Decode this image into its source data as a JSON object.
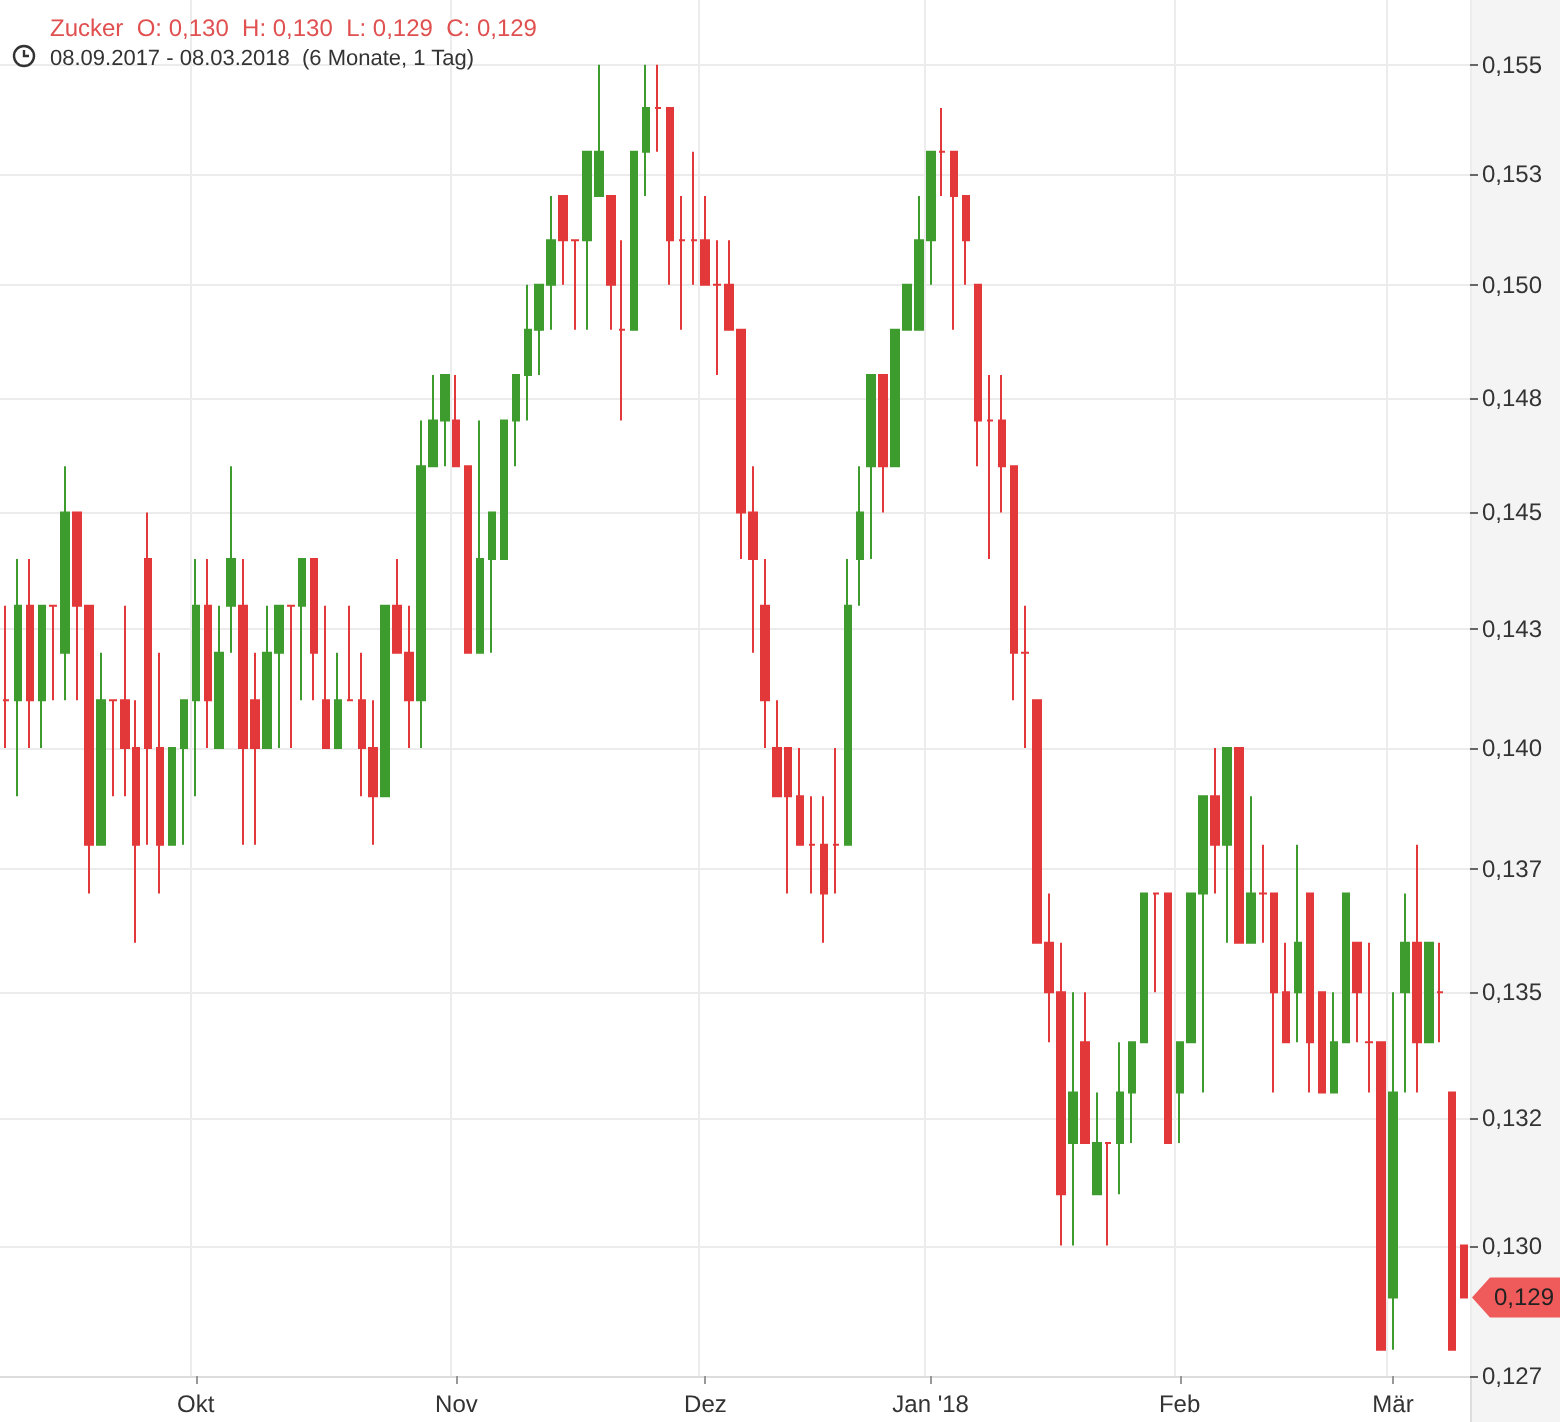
{
  "chart_data": {
    "type": "candlestick",
    "title": "Zucker  O: 0,130  H: 0,130  L: 0,129  C: 0,129",
    "subtitle": "08.09.2017 - 08.03.2018  (6 Monate, 1 Tag)",
    "categories": [
      null,
      null,
      null,
      null,
      null,
      null,
      null,
      null,
      null,
      null,
      null,
      null,
      null,
      null,
      null,
      null,
      "Okt",
      null,
      null,
      null,
      null,
      null,
      null,
      null,
      null,
      null,
      null,
      null,
      null,
      null,
      null,
      null,
      null,
      null,
      null,
      null,
      null,
      null,
      "Nov",
      null,
      null,
      null,
      null,
      null,
      null,
      null,
      null,
      null,
      null,
      null,
      null,
      null,
      null,
      null,
      null,
      null,
      null,
      null,
      null,
      "Dez",
      null,
      null,
      null,
      null,
      null,
      null,
      null,
      null,
      null,
      null,
      null,
      null,
      null,
      null,
      null,
      null,
      null,
      null,
      "Jan '18",
      null,
      null,
      null,
      null,
      null,
      null,
      null,
      null,
      null,
      null,
      null,
      null,
      null,
      null,
      null,
      null,
      null,
      null,
      null,
      null,
      "Feb",
      null,
      null,
      null,
      null,
      null,
      null,
      null,
      null,
      null,
      null,
      null,
      null,
      null,
      null,
      null,
      null,
      null,
      "Mär",
      null,
      null,
      null,
      null,
      null,
      null
    ],
    "ohlc": [
      [
        0.141,
        0.143,
        0.14,
        0.141
      ],
      [
        0.141,
        0.144,
        0.139,
        0.143
      ],
      [
        0.143,
        0.144,
        0.14,
        0.141
      ],
      [
        0.141,
        0.143,
        0.14,
        0.143
      ],
      [
        0.143,
        0.143,
        0.141,
        0.143
      ],
      [
        0.142,
        0.146,
        0.141,
        0.145
      ],
      [
        0.145,
        0.145,
        0.141,
        0.143
      ],
      [
        0.143,
        0.143,
        0.137,
        0.138
      ],
      [
        0.138,
        0.142,
        0.138,
        0.141
      ],
      [
        0.141,
        0.141,
        0.139,
        0.141
      ],
      [
        0.141,
        0.143,
        0.139,
        0.14
      ],
      [
        0.14,
        0.141,
        0.136,
        0.138
      ],
      [
        0.144,
        0.145,
        0.138,
        0.14
      ],
      [
        0.14,
        0.142,
        0.137,
        0.138
      ],
      [
        0.138,
        0.14,
        0.138,
        0.14
      ],
      [
        0.14,
        0.141,
        0.138,
        0.141
      ],
      [
        0.141,
        0.144,
        0.139,
        0.143
      ],
      [
        0.143,
        0.144,
        0.14,
        0.141
      ],
      [
        0.14,
        0.143,
        0.14,
        0.142
      ],
      [
        0.143,
        0.146,
        0.142,
        0.144
      ],
      [
        0.143,
        0.144,
        0.138,
        0.14
      ],
      [
        0.141,
        0.142,
        0.138,
        0.14
      ],
      [
        0.14,
        0.143,
        0.14,
        0.142
      ],
      [
        0.142,
        0.143,
        0.14,
        0.143
      ],
      [
        0.143,
        0.143,
        0.14,
        0.143
      ],
      [
        0.143,
        0.144,
        0.141,
        0.144
      ],
      [
        0.144,
        0.144,
        0.141,
        0.142
      ],
      [
        0.141,
        0.143,
        0.14,
        0.14
      ],
      [
        0.14,
        0.142,
        0.14,
        0.141
      ],
      [
        0.141,
        0.143,
        0.141,
        0.141
      ],
      [
        0.141,
        0.142,
        0.139,
        0.14
      ],
      [
        0.14,
        0.141,
        0.138,
        0.139
      ],
      [
        0.139,
        0.143,
        0.139,
        0.143
      ],
      [
        0.143,
        0.144,
        0.142,
        0.142
      ],
      [
        0.142,
        0.143,
        0.14,
        0.141
      ],
      [
        0.141,
        0.147,
        0.14,
        0.146
      ],
      [
        0.146,
        0.148,
        0.146,
        0.147
      ],
      [
        0.147,
        0.148,
        0.146,
        0.148
      ],
      [
        0.147,
        0.148,
        0.146,
        0.146
      ],
      [
        0.146,
        0.146,
        0.142,
        0.142
      ],
      [
        0.142,
        0.147,
        0.142,
        0.144
      ],
      [
        0.144,
        0.145,
        0.142,
        0.145
      ],
      [
        0.144,
        0.147,
        0.144,
        0.147
      ],
      [
        0.147,
        0.148,
        0.146,
        0.148
      ],
      [
        0.148,
        0.15,
        0.147,
        0.149
      ],
      [
        0.149,
        0.15,
        0.148,
        0.15
      ],
      [
        0.15,
        0.152,
        0.149,
        0.151
      ],
      [
        0.152,
        0.152,
        0.15,
        0.151
      ],
      [
        0.151,
        0.151,
        0.149,
        0.151
      ],
      [
        0.151,
        0.153,
        0.149,
        0.153
      ],
      [
        0.152,
        0.155,
        0.152,
        0.153
      ],
      [
        0.152,
        0.152,
        0.149,
        0.15
      ],
      [
        0.149,
        0.151,
        0.147,
        0.149
      ],
      [
        0.149,
        0.153,
        0.149,
        0.153
      ],
      [
        0.153,
        0.155,
        0.152,
        0.154
      ],
      [
        0.154,
        0.155,
        0.153,
        0.154
      ],
      [
        0.154,
        0.154,
        0.15,
        0.151
      ],
      [
        0.151,
        0.152,
        0.149,
        0.151
      ],
      [
        0.151,
        0.153,
        0.15,
        0.151
      ],
      [
        0.151,
        0.152,
        0.15,
        0.15
      ],
      [
        0.15,
        0.151,
        0.148,
        0.15
      ],
      [
        0.15,
        0.151,
        0.149,
        0.149
      ],
      [
        0.149,
        0.149,
        0.144,
        0.145
      ],
      [
        0.145,
        0.146,
        0.142,
        0.144
      ],
      [
        0.143,
        0.144,
        0.14,
        0.141
      ],
      [
        0.14,
        0.141,
        0.139,
        0.139
      ],
      [
        0.14,
        0.14,
        0.137,
        0.139
      ],
      [
        0.139,
        0.14,
        0.138,
        0.138
      ],
      [
        0.138,
        0.139,
        0.137,
        0.138
      ],
      [
        0.138,
        0.139,
        0.136,
        0.137
      ],
      [
        0.138,
        0.14,
        0.137,
        0.138
      ],
      [
        0.138,
        0.144,
        0.138,
        0.143
      ],
      [
        0.144,
        0.146,
        0.143,
        0.145
      ],
      [
        0.146,
        0.148,
        0.144,
        0.148
      ],
      [
        0.148,
        0.148,
        0.145,
        0.146
      ],
      [
        0.146,
        0.149,
        0.146,
        0.149
      ],
      [
        0.149,
        0.15,
        0.149,
        0.15
      ],
      [
        0.149,
        0.152,
        0.149,
        0.151
      ],
      [
        0.151,
        0.153,
        0.15,
        0.153
      ],
      [
        0.153,
        0.154,
        0.152,
        0.153
      ],
      [
        0.153,
        0.153,
        0.149,
        0.152
      ],
      [
        0.152,
        0.152,
        0.15,
        0.151
      ],
      [
        0.15,
        0.15,
        0.146,
        0.147
      ],
      [
        0.147,
        0.148,
        0.144,
        0.147
      ],
      [
        0.147,
        0.148,
        0.145,
        0.146
      ],
      [
        0.146,
        0.146,
        0.141,
        0.142
      ],
      [
        0.142,
        0.143,
        0.14,
        0.142
      ],
      [
        0.141,
        0.141,
        0.136,
        0.136
      ],
      [
        0.136,
        0.137,
        0.134,
        0.135
      ],
      [
        0.135,
        0.136,
        0.13,
        0.131
      ],
      [
        0.132,
        0.135,
        0.13,
        0.133
      ],
      [
        0.134,
        0.135,
        0.132,
        0.132
      ],
      [
        0.131,
        0.133,
        0.131,
        0.132
      ],
      [
        0.132,
        0.132,
        0.13,
        0.132
      ],
      [
        0.132,
        0.134,
        0.131,
        0.133
      ],
      [
        0.133,
        0.134,
        0.132,
        0.134
      ],
      [
        0.134,
        0.137,
        0.134,
        0.137
      ],
      [
        0.137,
        0.137,
        0.135,
        0.137
      ],
      [
        0.137,
        0.137,
        0.132,
        0.132
      ],
      [
        0.133,
        0.134,
        0.132,
        0.134
      ],
      [
        0.134,
        0.137,
        0.134,
        0.137
      ],
      [
        0.137,
        0.139,
        0.133,
        0.139
      ],
      [
        0.139,
        0.14,
        0.137,
        0.138
      ],
      [
        0.138,
        0.14,
        0.136,
        0.14
      ],
      [
        0.14,
        0.14,
        0.136,
        0.136
      ],
      [
        0.136,
        0.139,
        0.136,
        0.137
      ],
      [
        0.137,
        0.138,
        0.136,
        0.137
      ],
      [
        0.137,
        0.137,
        0.133,
        0.135
      ],
      [
        0.135,
        0.136,
        0.134,
        0.134
      ],
      [
        0.135,
        0.138,
        0.134,
        0.136
      ],
      [
        0.137,
        0.137,
        0.133,
        0.134
      ],
      [
        0.135,
        0.135,
        0.133,
        0.133
      ],
      [
        0.133,
        0.135,
        0.133,
        0.134
      ],
      [
        0.134,
        0.137,
        0.134,
        0.137
      ],
      [
        0.136,
        0.136,
        0.134,
        0.135
      ],
      [
        0.134,
        0.136,
        0.133,
        0.134
      ],
      [
        0.134,
        0.134,
        0.128,
        0.128
      ],
      [
        0.129,
        0.135,
        0.128,
        0.133
      ],
      [
        0.135,
        0.137,
        0.133,
        0.136
      ],
      [
        0.136,
        0.138,
        0.133,
        0.134
      ],
      [
        0.134,
        0.136,
        0.134,
        0.136
      ],
      [
        0.135,
        0.136,
        0.134,
        0.135
      ],
      [
        0.133,
        0.133,
        0.128,
        0.128
      ],
      [
        0.13,
        0.13,
        0.129,
        0.129
      ]
    ],
    "colors": [
      "#e2383a",
      "#3e9c2e",
      "#e2383a",
      "#3e9c2e",
      "#e2383a",
      "#3e9c2e",
      "#e2383a",
      "#e2383a",
      "#3e9c2e",
      "#e2383a",
      "#e2383a",
      "#e2383a",
      "#e2383a",
      "#e2383a",
      "#3e9c2e",
      "#3e9c2e",
      "#3e9c2e",
      "#e2383a",
      "#3e9c2e",
      "#3e9c2e",
      "#e2383a",
      "#e2383a",
      "#3e9c2e",
      "#3e9c2e",
      "#e2383a",
      "#3e9c2e",
      "#e2383a",
      "#e2383a",
      "#3e9c2e",
      "#e2383a",
      "#e2383a",
      "#e2383a",
      "#3e9c2e",
      "#e2383a",
      "#e2383a",
      "#3e9c2e",
      "#3e9c2e",
      "#3e9c2e",
      "#e2383a",
      "#e2383a",
      "#3e9c2e",
      "#3e9c2e",
      "#3e9c2e",
      "#3e9c2e",
      "#3e9c2e",
      "#3e9c2e",
      "#3e9c2e",
      "#e2383a",
      "#e2383a",
      "#3e9c2e",
      "#3e9c2e",
      "#e2383a",
      "#e2383a",
      "#3e9c2e",
      "#3e9c2e",
      "#e2383a",
      "#e2383a",
      "#e2383a",
      "#e2383a",
      "#e2383a",
      "#e2383a",
      "#e2383a",
      "#e2383a",
      "#e2383a",
      "#e2383a",
      "#e2383a",
      "#e2383a",
      "#e2383a",
      "#e2383a",
      "#e2383a",
      "#e2383a",
      "#3e9c2e",
      "#3e9c2e",
      "#3e9c2e",
      "#e2383a",
      "#3e9c2e",
      "#3e9c2e",
      "#3e9c2e",
      "#3e9c2e",
      "#e2383a",
      "#e2383a",
      "#e2383a",
      "#e2383a",
      "#e2383a",
      "#e2383a",
      "#e2383a",
      "#e2383a",
      "#e2383a",
      "#e2383a",
      "#e2383a",
      "#3e9c2e",
      "#e2383a",
      "#3e9c2e",
      "#e2383a",
      "#3e9c2e",
      "#3e9c2e",
      "#3e9c2e",
      "#e2383a",
      "#e2383a",
      "#3e9c2e",
      "#3e9c2e",
      "#3e9c2e",
      "#e2383a",
      "#3e9c2e",
      "#e2383a",
      "#3e9c2e",
      "#e2383a",
      "#e2383a",
      "#e2383a",
      "#3e9c2e",
      "#e2383a",
      "#e2383a",
      "#3e9c2e",
      "#3e9c2e",
      "#e2383a",
      "#e2383a",
      "#e2383a",
      "#3e9c2e",
      "#3e9c2e",
      "#e2383a",
      "#3e9c2e",
      "#e2383a",
      "#e2383a",
      "#e2383a"
    ],
    "ylim": [
      0.1275,
      0.1565
    ],
    "yticks": [
      {
        "value": 0.1275,
        "label": "0,127"
      },
      {
        "value": 0.13,
        "label": "0,130"
      },
      {
        "value": 0.1325,
        "label": "0,132"
      },
      {
        "value": 0.135,
        "label": "0,135"
      },
      {
        "value": 0.1375,
        "label": "0,137"
      },
      {
        "value": 0.14,
        "label": "0,140"
      },
      {
        "value": 0.1425,
        "label": "0,143"
      },
      {
        "value": 0.145,
        "label": "0,145"
      },
      {
        "value": 0.1475,
        "label": "0,148"
      },
      {
        "value": 0.15,
        "label": "0,150"
      },
      {
        "value": 0.1525,
        "label": "0,153"
      },
      {
        "value": 0.155,
        "label": "0,155"
      }
    ],
    "log": "y",
    "grid": true,
    "annotations": [
      "0,129"
    ]
  }
}
